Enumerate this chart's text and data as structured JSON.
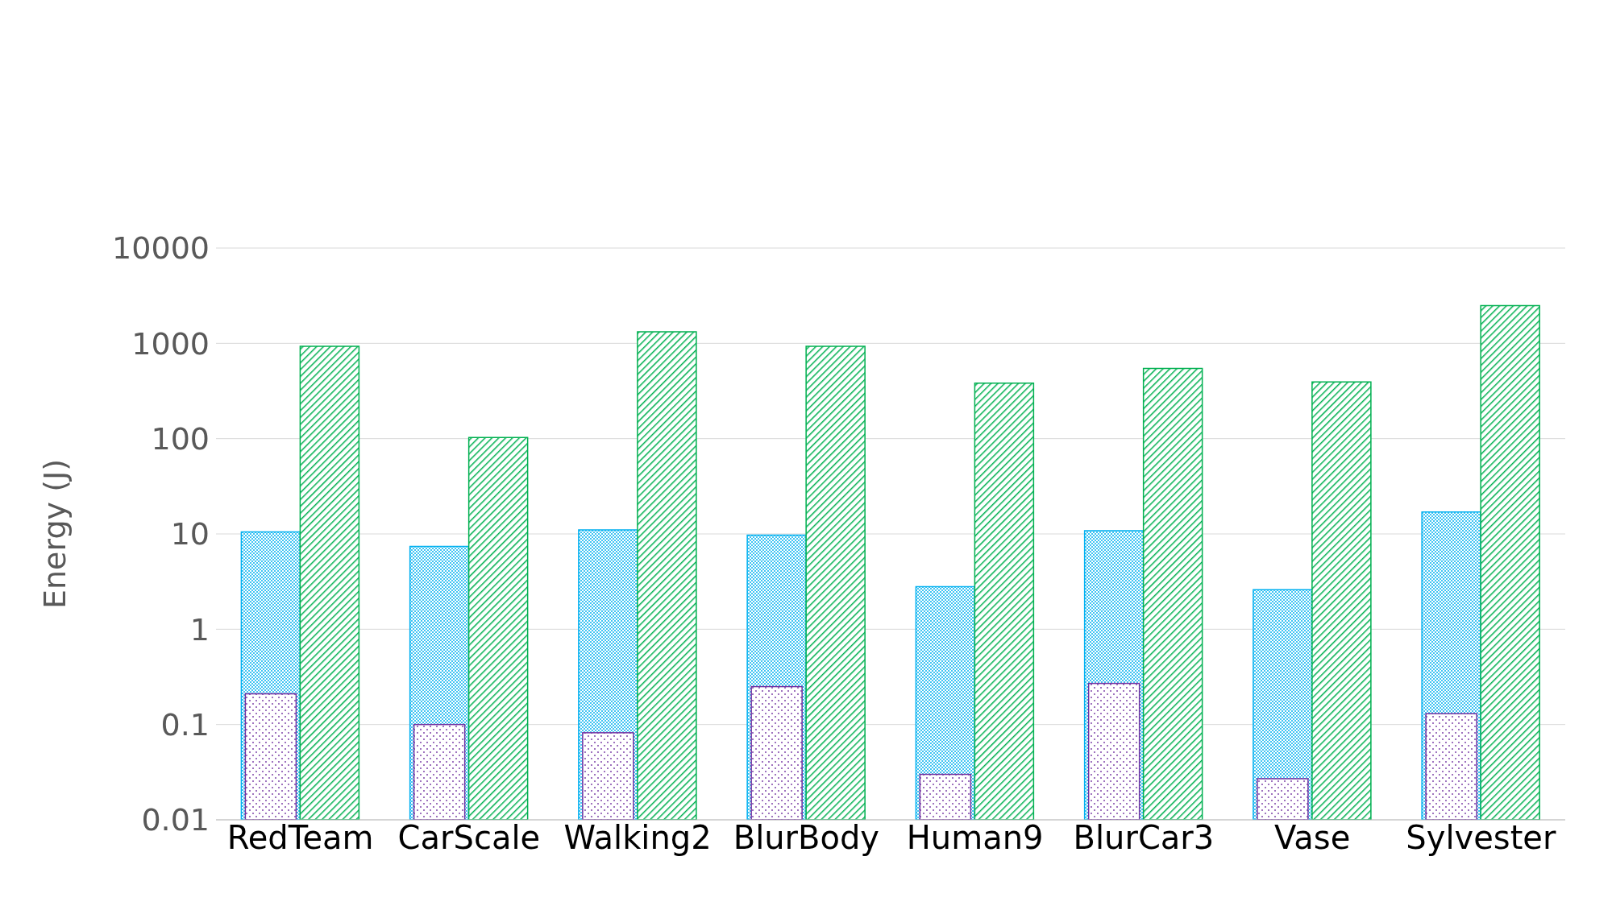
{
  "chart_data": {
    "type": "bar",
    "ylabel": "Energy (J)",
    "log": true,
    "grid": "y",
    "legend": false,
    "categories": [
      "RedTeam",
      "CarScale",
      "Walking2",
      "BlurBody",
      "Human9",
      "BlurCar3",
      "Vase",
      "Sylvester"
    ],
    "ylim": [
      0.01,
      10000
    ],
    "yticks": [
      0.01,
      0.1,
      1,
      10,
      100,
      1000,
      10000
    ],
    "series": [
      {
        "color": "#7030a0",
        "values": [
          0.21,
          0.1,
          0.082,
          0.25,
          0.03,
          0.27,
          0.027,
          0.13
        ]
      },
      {
        "color": "#00b0f0",
        "values": [
          10.5,
          7.4,
          11,
          9.7,
          2.8,
          10.8,
          2.6,
          17
        ]
      },
      {
        "color": "#00b050",
        "values": [
          930,
          103,
          1320,
          930,
          383,
          545,
          393,
          2490
        ]
      }
    ]
  }
}
